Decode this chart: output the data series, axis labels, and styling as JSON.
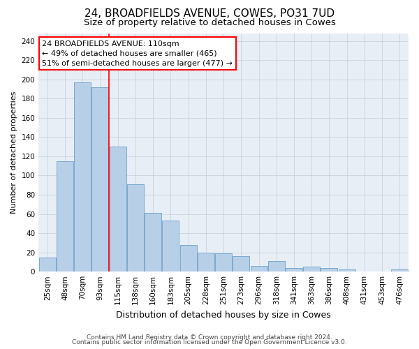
{
  "title": "24, BROADFIELDS AVENUE, COWES, PO31 7UD",
  "subtitle": "Size of property relative to detached houses in Cowes",
  "xlabel": "Distribution of detached houses by size in Cowes",
  "ylabel": "Number of detached properties",
  "categories": [
    "25sqm",
    "48sqm",
    "70sqm",
    "93sqm",
    "115sqm",
    "138sqm",
    "160sqm",
    "183sqm",
    "205sqm",
    "228sqm",
    "251sqm",
    "273sqm",
    "296sqm",
    "318sqm",
    "341sqm",
    "363sqm",
    "386sqm",
    "408sqm",
    "431sqm",
    "453sqm",
    "476sqm"
  ],
  "values": [
    15,
    115,
    197,
    192,
    130,
    91,
    61,
    53,
    28,
    20,
    19,
    16,
    6,
    11,
    4,
    5,
    4,
    2,
    0,
    0,
    2
  ],
  "bar_color": "#b8cfe8",
  "bar_edge_color": "#7aaad0",
  "vline_x": 3.5,
  "vline_color": "red",
  "annotation_text": "24 BROADFIELDS AVENUE: 110sqm\n← 49% of detached houses are smaller (465)\n51% of semi-detached houses are larger (477) →",
  "annotation_box_color": "white",
  "annotation_box_edge_color": "red",
  "ylim": [
    0,
    248
  ],
  "yticks": [
    0,
    20,
    40,
    60,
    80,
    100,
    120,
    140,
    160,
    180,
    200,
    220,
    240
  ],
  "grid_color": "#c8d4e0",
  "bg_color": "#e8eef5",
  "footer1": "Contains HM Land Registry data © Crown copyright and database right 2024.",
  "footer2": "Contains public sector information licensed under the Open Government Licence v3.0.",
  "title_fontsize": 11,
  "subtitle_fontsize": 9.5,
  "xlabel_fontsize": 9,
  "ylabel_fontsize": 8,
  "tick_fontsize": 7.5,
  "annotation_fontsize": 8,
  "footer_fontsize": 6.5
}
